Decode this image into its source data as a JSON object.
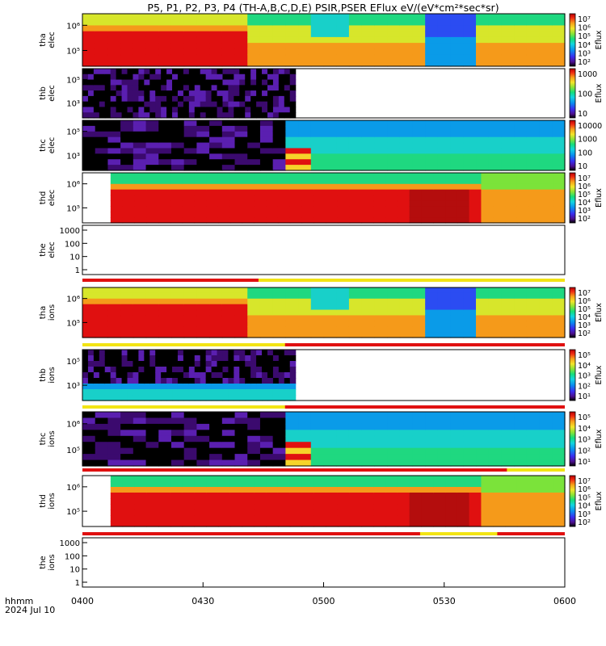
{
  "chart_data": {
    "type": "heatmap",
    "title": "P5, P1, P2, P3, P4 (TH-A,B,C,D,E) PSIR,PSER EFlux eV/(eV*cm²*sec*sr)",
    "xlabel": "hhmm",
    "xlabel_date": "2024 Jul 10",
    "x_tick_labels": [
      "0400",
      "0430",
      "0500",
      "0530",
      "0600"
    ],
    "x_range": [
      "0400",
      "0600"
    ],
    "y_scale": "log",
    "colorbar_label": "Eflux",
    "colormap": "rainbow (black/purple low → red high)",
    "panels": [
      {
        "probe": "tha",
        "species": "elec",
        "yticks": [
          "10⁶",
          "10⁵"
        ],
        "cbar_ticks": [
          "10⁷",
          "10⁶",
          "10⁵",
          "10⁴",
          "10³",
          "10²"
        ],
        "cbar_label": "Eflux",
        "data_end": "0600",
        "flag_bar": false
      },
      {
        "probe": "thb",
        "species": "elec",
        "yticks": [
          "10⁵",
          "10³"
        ],
        "cbar_ticks": [
          "1000",
          "100",
          "10"
        ],
        "cbar_label": "Eflux",
        "data_end": "0453",
        "flag_bar": false
      },
      {
        "probe": "thc",
        "species": "elec",
        "yticks": [
          "10⁵",
          "10³"
        ],
        "cbar_ticks": [
          "10000",
          "1000",
          "100",
          "10"
        ],
        "cbar_label": "",
        "data_end": "0600",
        "flag_bar": false
      },
      {
        "probe": "thd",
        "species": "elec",
        "yticks": [
          "10⁶",
          "10⁵"
        ],
        "cbar_ticks": [
          "10⁷",
          "10⁶",
          "10⁵",
          "10⁴",
          "10³",
          "10²"
        ],
        "cbar_label": "Eflux",
        "data_start": "0407",
        "flag_bar": false
      },
      {
        "probe": "the",
        "species": "elec",
        "yticks": [
          "1000",
          "100",
          "10",
          "1"
        ],
        "empty": true,
        "flag_bar": true
      },
      {
        "probe": "tha",
        "species": "ions",
        "yticks": [
          "10⁶",
          "10⁵"
        ],
        "cbar_ticks": [
          "10⁷",
          "10⁶",
          "10⁵",
          "10⁴",
          "10³",
          "10²"
        ],
        "cbar_label": "Eflux",
        "flag_bar": true
      },
      {
        "probe": "thb",
        "species": "ions",
        "yticks": [
          "10⁵",
          "10³"
        ],
        "cbar_ticks": [
          "10⁵",
          "10⁴",
          "10³",
          "10²",
          "10¹"
        ],
        "cbar_label": "Eflux",
        "data_end": "0453",
        "flag_bar": true
      },
      {
        "probe": "thc",
        "species": "ions",
        "yticks": [
          "10⁶",
          "10⁵"
        ],
        "cbar_ticks": [
          "10⁵",
          "10⁴",
          "10³",
          "10²",
          "10¹"
        ],
        "cbar_label": "Eflux",
        "flag_bar": true
      },
      {
        "probe": "thd",
        "species": "ions",
        "yticks": [
          "10⁶",
          "10⁵"
        ],
        "cbar_ticks": [
          "10⁷",
          "10⁶",
          "10⁵",
          "10⁴",
          "10³",
          "10²"
        ],
        "cbar_label": "Eflux",
        "data_start": "0407",
        "flag_bar": true
      },
      {
        "probe": "the",
        "species": "ions",
        "yticks": [
          "1000",
          "100",
          "10",
          "1"
        ],
        "empty": true,
        "flag_bar": false
      }
    ],
    "grid": false
  }
}
